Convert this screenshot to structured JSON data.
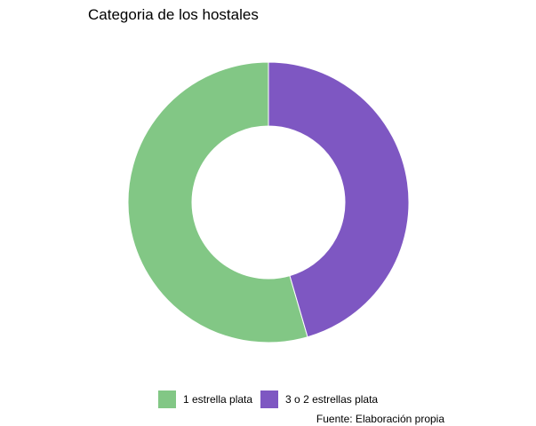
{
  "chart_data": {
    "type": "pie",
    "donut": true,
    "title": "Categoria de los hostales",
    "caption": "Fuente: Elaboración propia",
    "legend_position": "bottom",
    "slices": [
      {
        "label": "1 estrella plata",
        "value": 54.5,
        "color": "#82c785"
      },
      {
        "label": "3 o 2 estrellas plata",
        "value": 45.5,
        "color": "#7e57c2"
      }
    ]
  }
}
